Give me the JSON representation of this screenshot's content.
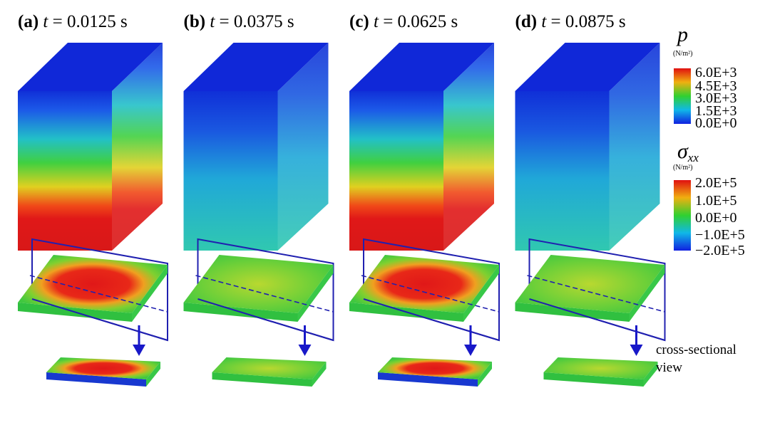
{
  "panels": [
    {
      "label": "(a)",
      "variable": "t",
      "time": "= 0.0125 s"
    },
    {
      "label": "(b)",
      "variable": "t",
      "time": "= 0.0375 s"
    },
    {
      "label": "(c)",
      "variable": "t",
      "time": "= 0.0625 s"
    },
    {
      "label": "(d)",
      "variable": "t",
      "time": "= 0.0875 s"
    }
  ],
  "legends": [
    {
      "symbol": "p",
      "subscript": null,
      "unit": "(N/m²)",
      "ticks": [
        "6.0E+3",
        "4.5E+3",
        "3.0E+3",
        "1.5E+3",
        "0.0E+0"
      ]
    },
    {
      "symbol": "σ",
      "subscript": "xx",
      "unit": "(N/m²)",
      "ticks": [
        "2.0E+5",
        "1.0E+5",
        "0.0E+0",
        "−1.0E+5",
        "−2.0E+5"
      ]
    }
  ],
  "annotation": [
    "cross-sectional",
    "view"
  ]
}
